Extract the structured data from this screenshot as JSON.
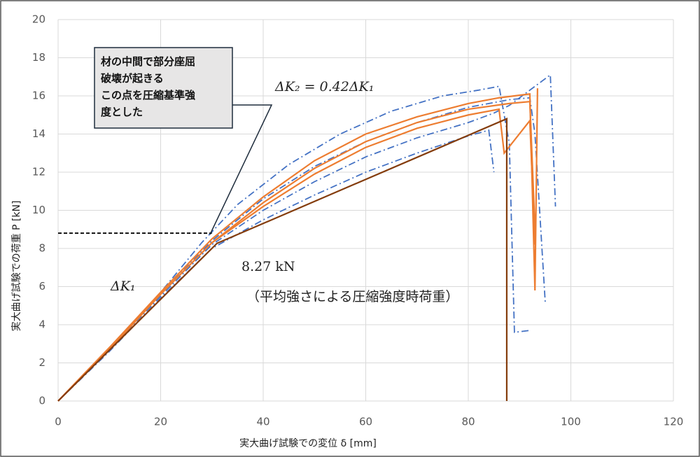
{
  "chart_data": {
    "type": "line",
    "xlabel": "実大曲げ試験での変位 δ [mm]",
    "ylabel": "実大曲げ試験での荷重 P [kN]",
    "xlim": [
      0,
      120
    ],
    "xticks": [
      0,
      20,
      40,
      60,
      80,
      100,
      120
    ],
    "ylim": [
      0,
      20
    ],
    "yticks": [
      0,
      2,
      4,
      6,
      8,
      10,
      12,
      14,
      16,
      18,
      20
    ],
    "grid": true,
    "callout": [
      "材の中間で部分座屈",
      "破壊が起きる",
      "この点を圧縮基準強",
      "度とした"
    ],
    "annotations": {
      "k2": "ΔK₂ = 0.42ΔK₁",
      "k1": "ΔK₁",
      "load": "8.27 kN",
      "note": "（平均強さによる圧縮強度時荷重）"
    },
    "series": [
      {
        "color": "#4472c4",
        "style": "dashdot",
        "x": [
          0,
          10,
          20,
          28,
          35,
          45,
          55,
          65,
          75,
          82,
          86,
          88,
          89,
          92
        ],
        "values": [
          0,
          2.8,
          5.7,
          8.3,
          10.3,
          12.4,
          14,
          15.2,
          16,
          16.3,
          16.5,
          13.5,
          3.6,
          3.7
        ]
      },
      {
        "color": "#4472c4",
        "style": "dashdot",
        "x": [
          0,
          10,
          20,
          30,
          40,
          50,
          60,
          70,
          80,
          88,
          92,
          93,
          95
        ],
        "values": [
          0,
          2.7,
          5.6,
          8.4,
          10.6,
          12.3,
          13.6,
          14.6,
          15.4,
          15.8,
          15.9,
          14,
          5.2
        ]
      },
      {
        "color": "#4472c4",
        "style": "dashdot",
        "x": [
          0,
          10,
          20,
          30,
          40,
          50,
          60,
          70,
          80,
          85,
          88,
          92,
          96,
          97
        ],
        "values": [
          0,
          2.7,
          5.5,
          8.2,
          10,
          11.5,
          12.8,
          13.8,
          14.6,
          15.1,
          15.5,
          16.3,
          17.1,
          10.2
        ]
      },
      {
        "color": "#4472c4",
        "style": "dashdot",
        "x": [
          0,
          10,
          20,
          30,
          40,
          50,
          60,
          70,
          80,
          84,
          85
        ],
        "values": [
          0,
          2.6,
          5.4,
          8,
          9.5,
          10.8,
          12,
          13,
          13.9,
          14.2,
          12
        ]
      },
      {
        "color": "#ed7d31",
        "style": "solid",
        "x": [
          0,
          10,
          20,
          30,
          40,
          50,
          60,
          70,
          80,
          86,
          92,
          93,
          93.5
        ],
        "values": [
          0,
          2.8,
          5.7,
          8.5,
          10.7,
          12.6,
          14,
          14.9,
          15.6,
          15.9,
          16.1,
          5.8,
          16.4
        ]
      },
      {
        "color": "#ed7d31",
        "style": "solid",
        "x": [
          0,
          10,
          20,
          30,
          40,
          50,
          60,
          70,
          80,
          86,
          87,
          92,
          93
        ],
        "values": [
          0,
          2.8,
          5.6,
          8.3,
          10.2,
          11.9,
          13.3,
          14.3,
          15,
          15.3,
          13,
          14.7,
          8.2
        ]
      },
      {
        "color": "#ed7d31",
        "style": "solid",
        "x": [
          0,
          10,
          20,
          30,
          40,
          50,
          60,
          70,
          80,
          88,
          92,
          93
        ],
        "values": [
          0,
          2.7,
          5.6,
          8.3,
          10.4,
          12.2,
          13.6,
          14.6,
          15.3,
          15.6,
          15.7,
          9
        ]
      },
      {
        "color": "#843c0c",
        "style": "solid",
        "x": [
          0,
          31,
          87.5,
          87.5
        ],
        "values": [
          0,
          8.27,
          14.8,
          0
        ]
      },
      {
        "color": "#000000",
        "style": "dashed",
        "x": [
          0,
          30
        ],
        "values": [
          8.8,
          8.8
        ]
      }
    ]
  }
}
